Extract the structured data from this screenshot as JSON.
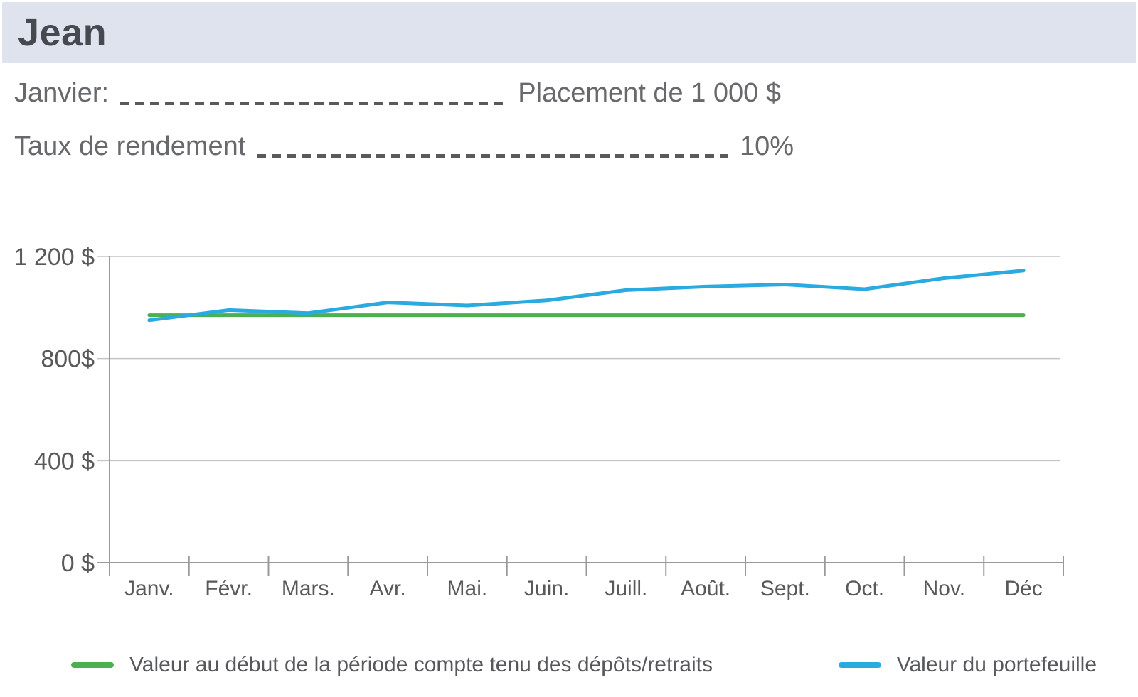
{
  "header": {
    "title": "Jean",
    "background": "#dfe3ee"
  },
  "info_lines": [
    {
      "label": "Janvier:",
      "value": "Placement de 1 000 $"
    },
    {
      "label": "Taux de rendement",
      "value": "10%"
    }
  ],
  "chart_data": {
    "type": "line",
    "title": "",
    "xlabel": "",
    "ylabel": "",
    "categories": [
      "Janv.",
      "Févr.",
      "Mars.",
      "Avr.",
      "Mai.",
      "Juin.",
      "Juill.",
      "Août.",
      "Sept.",
      "Oct.",
      "Nov.",
      "Déc"
    ],
    "series": [
      {
        "name": "Valeur au début de la période compte tenu des dépôts/retraits",
        "color": "#4caf50",
        "values": [
          970,
          970,
          970,
          970,
          970,
          970,
          970,
          970,
          970,
          970,
          970,
          970
        ]
      },
      {
        "name": "Valeur du portefeuille",
        "color": "#29abe2",
        "values": [
          950,
          990,
          978,
          1020,
          1008,
          1028,
          1068,
          1082,
          1090,
          1072,
          1115,
          1145
        ]
      }
    ],
    "y_ticks": [
      {
        "value": 1200,
        "label": "1 200 $"
      },
      {
        "value": 800,
        "label": "800$"
      },
      {
        "value": 400,
        "label": "400 $"
      },
      {
        "value": 0,
        "label": "0 $"
      }
    ],
    "ylim": [
      0,
      1200
    ],
    "grid": true,
    "legend_position": "bottom",
    "axis_color": "#9a9a9a",
    "grid_color": "#c4c4c4",
    "tick_label_color": "#58595b"
  }
}
